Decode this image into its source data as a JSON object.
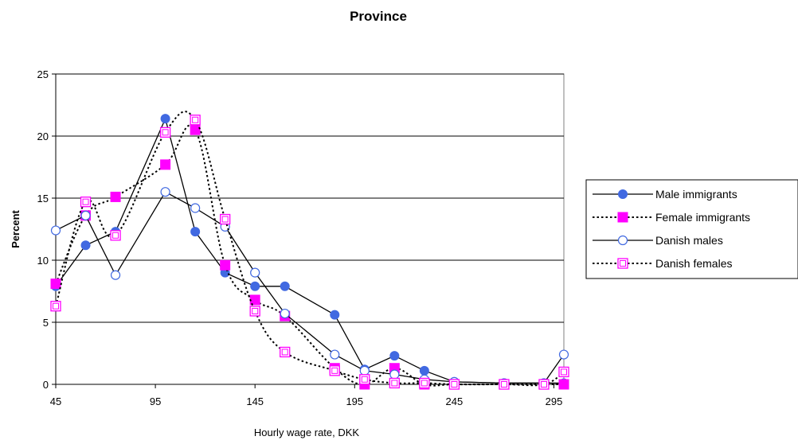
{
  "chart_data": {
    "type": "line",
    "title": "Province",
    "xlabel": "Hourly wage rate, DKK",
    "ylabel": "Percent",
    "xlim": [
      45,
      300
    ],
    "ylim": [
      0,
      25
    ],
    "x_ticks": [
      45,
      95,
      145,
      195,
      245,
      295
    ],
    "y_ticks": [
      0,
      5,
      10,
      15,
      20,
      25
    ],
    "x_tick_labels": [
      "45",
      "95",
      "145",
      "195",
      "245",
      "295"
    ],
    "y_tick_labels": [
      "0",
      "5",
      "10",
      "15",
      "20",
      "25"
    ],
    "grid": "horizontal",
    "legend_position": "right",
    "series": [
      {
        "name": "Male immigrants",
        "color": "#4169E1",
        "marker": "filled-circle",
        "line": "solid",
        "smooth": false,
        "x": [
          45,
          60,
          75,
          100,
          115,
          130,
          145,
          160,
          185,
          200,
          215,
          230,
          245,
          270,
          290,
          300
        ],
        "y": [
          7.9,
          11.2,
          12.3,
          21.4,
          12.3,
          9.0,
          7.9,
          7.9,
          5.6,
          1.2,
          2.3,
          1.1,
          0.2,
          0.1,
          0.1,
          0.1
        ]
      },
      {
        "name": "Female immigrants",
        "color": "#FF00FF",
        "marker": "filled-square",
        "line": "dotted",
        "smooth": true,
        "x": [
          45,
          60,
          75,
          100,
          115,
          130,
          145,
          160,
          185,
          200,
          215,
          230,
          245,
          270,
          290,
          300
        ],
        "y": [
          8.1,
          13.6,
          15.1,
          17.7,
          20.5,
          9.6,
          6.8,
          5.5,
          1.3,
          0.0,
          1.3,
          0.0,
          0.0,
          0.0,
          0.0,
          0.0
        ]
      },
      {
        "name": "Danish males",
        "color": "#4169E1",
        "marker": "open-circle",
        "line": "solid",
        "smooth": false,
        "x": [
          45,
          60,
          75,
          100,
          115,
          130,
          145,
          160,
          185,
          200,
          215,
          230,
          245,
          270,
          290,
          300
        ],
        "y": [
          12.4,
          13.6,
          8.8,
          15.5,
          14.2,
          12.7,
          9.0,
          5.7,
          2.4,
          1.1,
          0.8,
          0.4,
          0.2,
          0.1,
          0.1,
          2.4
        ]
      },
      {
        "name": "Danish females",
        "color": "#FF00FF",
        "marker": "open-square",
        "line": "dotted",
        "smooth": true,
        "x": [
          45,
          60,
          75,
          100,
          115,
          130,
          145,
          160,
          185,
          200,
          215,
          230,
          245,
          270,
          290,
          300
        ],
        "y": [
          6.3,
          14.7,
          12.0,
          20.3,
          21.3,
          13.3,
          5.9,
          2.6,
          1.1,
          0.4,
          0.1,
          0.1,
          0.0,
          0.0,
          0.0,
          1.0
        ]
      }
    ]
  }
}
